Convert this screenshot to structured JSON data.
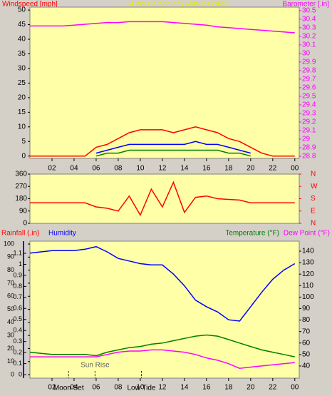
{
  "chart_data": [
    {
      "type": "line",
      "title": "24 hour graph day   May 23 2023",
      "ylabel": "Windspeed [mph]",
      "y2label": "Barometer [.in]",
      "x": [
        0,
        1,
        2,
        3,
        4,
        5,
        6,
        7,
        8,
        9,
        10,
        11,
        12,
        13,
        14,
        15,
        16,
        17,
        18,
        19,
        20,
        21,
        22,
        23,
        24
      ],
      "xlim": [
        0,
        24.4
      ],
      "xticks": [
        {
          "value": 2,
          "label": "02"
        },
        {
          "value": 4,
          "label": "04"
        },
        {
          "value": 6,
          "label": "06"
        },
        {
          "value": 8,
          "label": "08"
        },
        10,
        12,
        14,
        16,
        18,
        20,
        22,
        {
          "value": 24,
          "label": "00"
        }
      ],
      "ylim": [
        -0.8,
        51
      ],
      "yticks": [
        0,
        5,
        10,
        15,
        20,
        25,
        30,
        35,
        40,
        45,
        50
      ],
      "y2lim": [
        28.775,
        30.54
      ],
      "y2ticks": [
        28.8,
        28.9,
        29,
        29.1,
        29.2,
        29.3,
        29.4,
        29.5,
        29.6,
        29.7,
        29.8,
        29.9,
        30,
        30.1,
        30.2,
        30.3,
        30.4,
        30.5
      ],
      "series": [
        {
          "color": "#ff00ff",
          "axis": "y2",
          "values": [
            30.32,
            30.32,
            30.32,
            30.32,
            30.33,
            30.34,
            30.35,
            30.36,
            30.36,
            30.37,
            30.37,
            30.37,
            30.37,
            30.36,
            30.35,
            30.34,
            30.33,
            30.31,
            30.3,
            30.29,
            30.28,
            30.27,
            30.26,
            30.25,
            30.24
          ]
        },
        {
          "color": "#ff0000",
          "axis": "y",
          "values": [
            0,
            0,
            0,
            0,
            0,
            0,
            3,
            4,
            6,
            8,
            9,
            9,
            9,
            8,
            9,
            10,
            9,
            8,
            6,
            5,
            3,
            1,
            0,
            0,
            0
          ]
        },
        {
          "color": "#0000ff",
          "axis": "y",
          "values": [
            null,
            null,
            null,
            null,
            null,
            null,
            1,
            2,
            3,
            4,
            4,
            4,
            4,
            4,
            4,
            5,
            4,
            4,
            3,
            2,
            1,
            null,
            null,
            null,
            null
          ]
        },
        {
          "color": "#008000",
          "axis": "y",
          "values": [
            null,
            null,
            null,
            null,
            null,
            null,
            0,
            1,
            1,
            2,
            2,
            2,
            2,
            2,
            2,
            2,
            2,
            2,
            1,
            1,
            0,
            null,
            null,
            null,
            null
          ]
        }
      ]
    },
    {
      "type": "line",
      "x": [
        0,
        1,
        2,
        3,
        4,
        5,
        6,
        7,
        8,
        9,
        10,
        11,
        12,
        13,
        14,
        15,
        16,
        17,
        18,
        19,
        20,
        21,
        22,
        23,
        24
      ],
      "xlim": [
        0,
        24.4
      ],
      "ylim": [
        0,
        360
      ],
      "yticks": [
        0,
        90,
        180,
        270,
        360
      ],
      "y2ticks": [
        {
          "value": 360,
          "label": "N"
        },
        {
          "value": 270,
          "label": "W"
        },
        {
          "value": 180,
          "label": "S"
        },
        {
          "value": 90,
          "label": "E"
        },
        {
          "value": 0,
          "label": "N"
        }
      ],
      "series": [
        {
          "color": "#ff0000",
          "axis": "y",
          "values": [
            150,
            150,
            150,
            150,
            150,
            150,
            120,
            110,
            90,
            200,
            60,
            250,
            120,
            300,
            80,
            190,
            200,
            180,
            175,
            170,
            150,
            150,
            150,
            150,
            150
          ]
        }
      ]
    },
    {
      "type": "line",
      "x": [
        0,
        1,
        2,
        3,
        4,
        5,
        6,
        7,
        8,
        9,
        10,
        11,
        12,
        13,
        14,
        15,
        16,
        17,
        18,
        19,
        20,
        21,
        22,
        23,
        24
      ],
      "xlim": [
        0,
        24.4
      ],
      "xticks": [
        {
          "value": 2,
          "label": "02"
        },
        {
          "value": 4,
          "label": "04"
        },
        {
          "value": 6,
          "label": "06"
        },
        {
          "value": 8,
          "label": "08"
        },
        10,
        12,
        14,
        16,
        18,
        20,
        22,
        {
          "value": 24,
          "label": "00"
        }
      ],
      "ylim": [
        -2.7,
        102.2
      ],
      "yticks": [
        0,
        10,
        20,
        30,
        40,
        50,
        60,
        70,
        80,
        90,
        100
      ],
      "y2lim": [
        29.4,
        148.7
      ],
      "y2ticks": [
        40,
        50,
        60,
        70,
        80,
        90,
        100,
        110,
        120,
        130,
        140
      ],
      "y3label": "Rainfall (.in)",
      "y3lim": [
        -0.032,
        1.21
      ],
      "y3ticks": [
        0,
        0.1,
        0.2,
        0.3,
        0.4,
        0.5,
        0.6,
        0.7,
        0.8,
        0.9,
        1,
        1.1
      ],
      "series": [
        {
          "name": "Humidity",
          "color": "#0000ff",
          "axis": "y",
          "values": [
            93,
            94,
            95,
            95,
            95,
            96,
            98,
            94,
            89,
            87,
            85,
            84,
            84,
            77,
            68,
            57,
            52,
            48,
            42,
            41,
            52,
            63,
            73,
            80,
            85
          ]
        },
        {
          "name": "Temperature (°F)",
          "color": "#008000",
          "axis": "y2",
          "values": [
            52,
            51,
            50,
            50,
            50,
            50,
            49,
            52,
            54,
            56,
            57,
            59,
            60,
            62,
            64,
            66,
            67,
            66,
            63,
            60,
            57,
            54,
            52,
            50,
            48
          ]
        },
        {
          "name": "Dew Point (°F)",
          "color": "#ff00ff",
          "axis": "y2",
          "values": [
            48,
            48,
            48,
            48,
            48,
            48,
            48,
            50,
            52,
            53,
            53,
            54,
            54,
            53,
            52,
            50,
            47,
            45,
            42,
            38,
            39,
            40,
            41,
            42,
            43
          ]
        }
      ],
      "events": [
        {
          "label": "Moon Set",
          "x": 3.5
        },
        {
          "label": "Sun Rise",
          "x": 5.9
        },
        {
          "label": "Low Tide",
          "x": 10.1
        }
      ]
    }
  ]
}
